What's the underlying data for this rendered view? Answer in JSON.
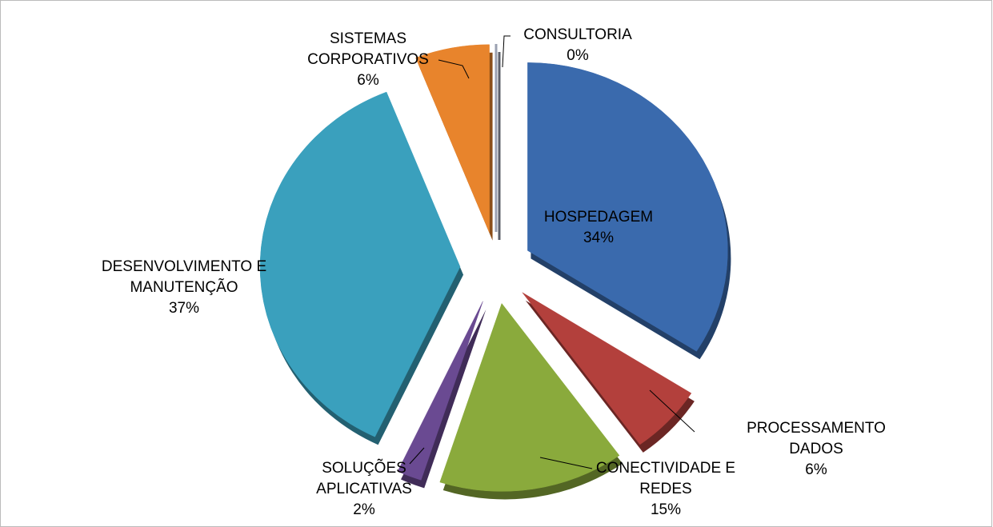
{
  "chart_data": {
    "type": "pie",
    "categories": [
      "HOSPEDAGEM",
      "PROCESSAMENTO DADOS",
      "CONECTIVIDADE E REDES",
      "SOLUÇÕES APLICATIVAS",
      "DESENVOLVIMENTO E MANUTENÇÃO",
      "SISTEMAS CORPORATIVOS",
      "CONSULTORIA"
    ],
    "values": [
      34,
      6,
      15,
      2,
      37,
      6,
      0
    ],
    "value_labels": [
      "34%",
      "6%",
      "15%",
      "2%",
      "37%",
      "6%",
      "0%"
    ],
    "colors": [
      "#3a6aad",
      "#b3403c",
      "#8aaa3c",
      "#6a4a92",
      "#3aa0bd",
      "#e8842c",
      "#9aa0b0"
    ]
  }
}
